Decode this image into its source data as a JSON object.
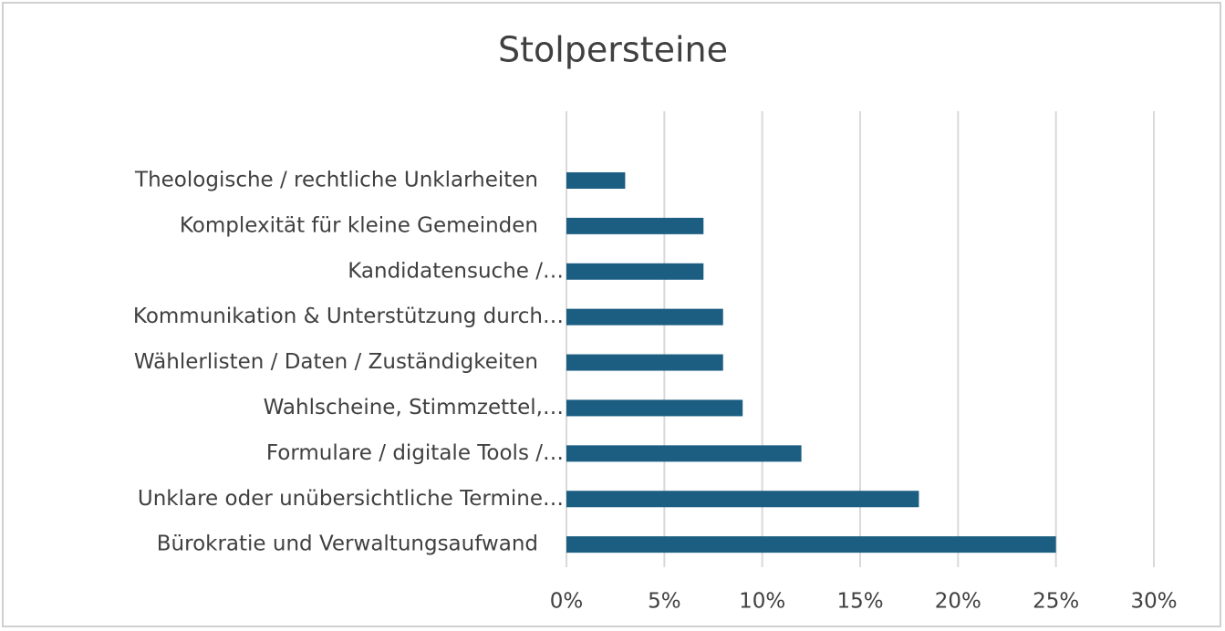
{
  "chart_data": {
    "type": "bar",
    "orientation": "horizontal",
    "title": "Stolpersteine",
    "categories": [
      "Theologische / rechtliche Unklarheiten",
      "Komplexität für kleine Gemeinden",
      "Kandidatensuche /…",
      "Kommunikation & Unterstützung durch…",
      "Wählerlisten / Daten / Zuständigkeiten",
      "Wahlscheine, Stimmzettel,…",
      "Formulare / digitale Tools /…",
      "Unklare oder unübersichtliche Termine…",
      "Bürokratie und Verwaltungsaufwand"
    ],
    "values": [
      3,
      7,
      7,
      8,
      8,
      9,
      12,
      18,
      25
    ],
    "color": "#1b5e82",
    "xlim": [
      0,
      30
    ],
    "xticks": [
      {
        "value": 0,
        "label": "0%"
      },
      {
        "value": 5,
        "label": "5%"
      },
      {
        "value": 10,
        "label": "10%"
      },
      {
        "value": 15,
        "label": "15%"
      },
      {
        "value": 20,
        "label": "20%"
      },
      {
        "value": 25,
        "label": "25%"
      },
      {
        "value": 30,
        "label": "30%"
      }
    ],
    "grid": true
  }
}
